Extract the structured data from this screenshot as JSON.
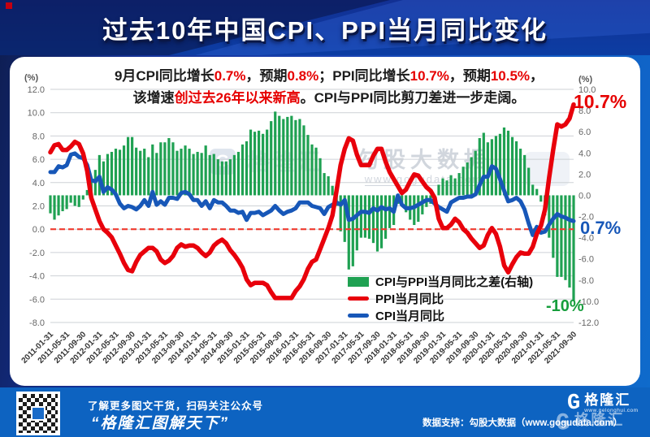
{
  "banner": {
    "title": "过去10年中国CPI、PPI当月同比变化"
  },
  "subtitle": {
    "line1": [
      {
        "t": "9月CPI同比增长",
        "c": "dark"
      },
      {
        "t": "0.7%",
        "c": "red"
      },
      {
        "t": "，预期",
        "c": "dark"
      },
      {
        "t": "0.8%",
        "c": "red"
      },
      {
        "t": "；PPI同比增长",
        "c": "dark"
      },
      {
        "t": "10.7%",
        "c": "red"
      },
      {
        "t": "，预期",
        "c": "dark"
      },
      {
        "t": "10.5%",
        "c": "red"
      },
      {
        "t": "，",
        "c": "dark"
      }
    ],
    "line2": [
      {
        "t": "该增速",
        "c": "dark"
      },
      {
        "t": "创过去26年以来新高",
        "c": "red"
      },
      {
        "t": "。CPI与PPI同比剪刀差进一步走阔。",
        "c": "dark"
      }
    ]
  },
  "chart_data": {
    "type": "combo",
    "x_start": "2011-01",
    "x_end": "2021-09",
    "freq": "monthly",
    "n_points": 129,
    "x_tick_labels": [
      "2011-01-31",
      "2011-05-31",
      "2011-09-30",
      "2012-01-31",
      "2012-05-31",
      "2012-09-30",
      "2013-01-31",
      "2013-05-31",
      "2013-09-30",
      "2014-01-31",
      "2014-05-31",
      "2014-09-30",
      "2015-01-31",
      "2015-05-31",
      "2015-09-30",
      "2016-01-31",
      "2016-05-31",
      "2016-09-30",
      "2017-01-31",
      "2017-05-31",
      "2017-09-30",
      "2018-01-31",
      "2018-05-31",
      "2018-09-30",
      "2019-01-31",
      "2019-05-31",
      "2019-09-30",
      "2020-01-31",
      "2020-05-31",
      "2020-09-30",
      "2021-01-31",
      "2021-05-31",
      "2021-09-30"
    ],
    "left_axis": {
      "unit": "(%)",
      "min": -8,
      "max": 12,
      "step": 2,
      "ticks": [
        "12.0",
        "10.0",
        "8.0",
        "6.0",
        "4.0",
        "2.0",
        "0.0",
        "-2.0",
        "-4.0",
        "-6.0",
        "-8.0"
      ]
    },
    "right_axis": {
      "unit": "(%)",
      "min": -12,
      "max": 10,
      "step": 2,
      "ticks": [
        "10.0",
        "8.0",
        "6.0",
        "4.0",
        "2.0",
        "0.0",
        "-2.0",
        "-4.0",
        "-6.0",
        "-8.0",
        "-10.0",
        "-12.0"
      ]
    },
    "zero_line": {
      "axis": "left",
      "style": "dashed",
      "color": "#ef3b2f"
    },
    "grid": true,
    "series": [
      {
        "name": "CPI与PPI当月同比之差(右轴)",
        "type": "bar",
        "axis": "right",
        "color": "#1fa152",
        "values": [
          -1.7,
          -2.3,
          -1.9,
          -1.5,
          -1.3,
          -0.7,
          -1.0,
          -1.1,
          -0.4,
          0.5,
          1.5,
          2.4,
          3.8,
          3.2,
          3.9,
          4.1,
          4.4,
          4.3,
          4.7,
          5.5,
          5.5,
          4.5,
          4.2,
          4.4,
          3.6,
          4.8,
          4.0,
          5.0,
          5.0,
          5.4,
          5.0,
          4.2,
          4.4,
          4.7,
          4.4,
          3.9,
          4.1,
          4.0,
          4.7,
          3.8,
          3.9,
          3.4,
          3.2,
          3.2,
          3.4,
          3.8,
          4.1,
          4.8,
          5.1,
          6.2,
          6.0,
          6.1,
          5.8,
          6.2,
          7.0,
          7.9,
          7.5,
          7.2,
          7.4,
          7.5,
          7.1,
          7.2,
          6.6,
          5.7,
          4.8,
          4.5,
          3.5,
          2.1,
          1.8,
          0.9,
          -1.0,
          -3.4,
          -4.4,
          -7.0,
          -6.7,
          -5.2,
          -4.0,
          -4.0,
          -4.1,
          -4.5,
          -5.3,
          -5.0,
          -4.1,
          -3.1,
          -2.8,
          -0.8,
          -1.0,
          -1.6,
          -2.3,
          -2.8,
          -2.5,
          -1.8,
          -1.1,
          -0.8,
          -0.5,
          1.0,
          1.6,
          1.4,
          1.9,
          1.6,
          2.1,
          2.7,
          3.1,
          3.6,
          4.2,
          5.4,
          5.9,
          5.0,
          5.3,
          5.6,
          5.8,
          6.4,
          6.1,
          5.5,
          5.1,
          4.4,
          3.8,
          2.6,
          1.0,
          0.6,
          -0.6,
          -1.9,
          -4.0,
          -5.9,
          -7.7,
          -7.7,
          -8.0,
          -8.7,
          -10.0
        ]
      },
      {
        "name": "PPI当月同比",
        "type": "line",
        "axis": "left",
        "color": "#e8000b",
        "values": [
          6.6,
          7.2,
          7.3,
          6.8,
          6.8,
          7.1,
          7.5,
          7.3,
          6.5,
          5.0,
          2.7,
          1.7,
          0.7,
          0.0,
          -0.3,
          -0.7,
          -1.4,
          -2.1,
          -2.9,
          -3.5,
          -3.6,
          -2.8,
          -2.2,
          -1.9,
          -1.6,
          -1.6,
          -1.9,
          -2.6,
          -2.9,
          -2.7,
          -2.3,
          -1.6,
          -1.3,
          -1.5,
          -1.4,
          -1.4,
          -1.6,
          -2.0,
          -2.3,
          -2.0,
          -1.4,
          -1.1,
          -0.9,
          -1.2,
          -1.8,
          -2.2,
          -2.7,
          -3.3,
          -4.3,
          -4.8,
          -4.6,
          -4.6,
          -4.6,
          -4.8,
          -5.4,
          -5.9,
          -5.9,
          -5.9,
          -5.9,
          -5.9,
          -5.3,
          -4.9,
          -4.3,
          -3.4,
          -2.8,
          -2.6,
          -1.7,
          -0.8,
          0.1,
          1.2,
          3.3,
          5.5,
          6.9,
          7.8,
          7.6,
          6.4,
          5.5,
          5.5,
          5.5,
          6.3,
          6.9,
          6.9,
          5.8,
          4.9,
          4.3,
          3.7,
          3.1,
          3.4,
          4.1,
          4.7,
          4.6,
          4.1,
          3.6,
          3.3,
          2.7,
          0.9,
          0.1,
          0.1,
          0.4,
          0.9,
          0.6,
          0.0,
          -0.3,
          -0.8,
          -1.2,
          -1.6,
          -1.4,
          -0.5,
          0.1,
          -0.4,
          -1.5,
          -3.1,
          -3.7,
          -3.0,
          -2.4,
          -2.0,
          -2.1,
          -2.1,
          -1.5,
          -0.4,
          0.3,
          1.7,
          4.4,
          6.8,
          9.0,
          8.8,
          9.0,
          9.5,
          10.7
        ]
      },
      {
        "name": "CPI当月同比",
        "type": "line",
        "axis": "left",
        "color": "#1757b8",
        "values": [
          4.9,
          4.9,
          5.4,
          5.3,
          5.5,
          6.4,
          6.5,
          6.2,
          6.1,
          5.5,
          4.2,
          4.1,
          4.5,
          3.2,
          3.6,
          3.4,
          3.0,
          2.2,
          1.8,
          2.0,
          1.9,
          1.7,
          2.0,
          2.5,
          2.0,
          3.2,
          2.1,
          2.4,
          2.1,
          2.7,
          2.7,
          2.6,
          3.1,
          3.2,
          3.0,
          2.5,
          2.5,
          2.0,
          2.4,
          1.8,
          2.5,
          2.3,
          2.3,
          2.0,
          1.6,
          1.6,
          1.4,
          1.5,
          0.8,
          1.4,
          1.4,
          1.5,
          1.2,
          1.4,
          1.6,
          2.0,
          1.6,
          1.3,
          1.5,
          1.6,
          1.8,
          2.3,
          2.3,
          2.3,
          2.0,
          1.9,
          1.8,
          1.3,
          1.9,
          2.1,
          2.3,
          2.1,
          2.5,
          0.8,
          0.9,
          1.2,
          1.5,
          1.5,
          1.4,
          1.8,
          1.6,
          1.9,
          1.7,
          1.8,
          1.5,
          2.9,
          2.1,
          1.8,
          1.8,
          1.9,
          2.1,
          2.3,
          2.5,
          2.5,
          2.2,
          1.9,
          1.7,
          1.5,
          2.3,
          2.5,
          2.7,
          2.7,
          2.8,
          2.8,
          3.0,
          3.8,
          4.5,
          4.5,
          5.4,
          5.2,
          4.3,
          3.3,
          2.4,
          2.5,
          2.7,
          2.4,
          1.7,
          0.5,
          -0.5,
          0.2,
          -0.3,
          -0.2,
          0.4,
          0.9,
          1.3,
          1.1,
          1.0,
          0.8,
          0.7
        ]
      }
    ],
    "annotations": [
      {
        "text": "10.7%",
        "color": "#e60000",
        "series": "PPI当月同比"
      },
      {
        "text": "0.7%",
        "color": "#1757b8",
        "series": "CPI当月同比"
      },
      {
        "text": "-10%",
        "color": "#169e3c",
        "series": "CPI与PPI当月同比之差(右轴)"
      }
    ],
    "legend_position": "inside-bottom-right"
  },
  "watermark": {
    "logo_letter": "G",
    "logo_text": "格隆汇",
    "center_text": "勾股大数据",
    "center_url": "www.gogudata.com"
  },
  "footer": {
    "qr_caption_line1": "了解更多图文干货，扫码关注公众号",
    "qr_caption_line2": "“格隆汇图解天下”",
    "data_support": "数据支持：勾股大数据（www.gogudata.com）",
    "logo_letter": "G",
    "logo_text": "格隆汇",
    "logo_url": "www.gelonghui.com"
  }
}
